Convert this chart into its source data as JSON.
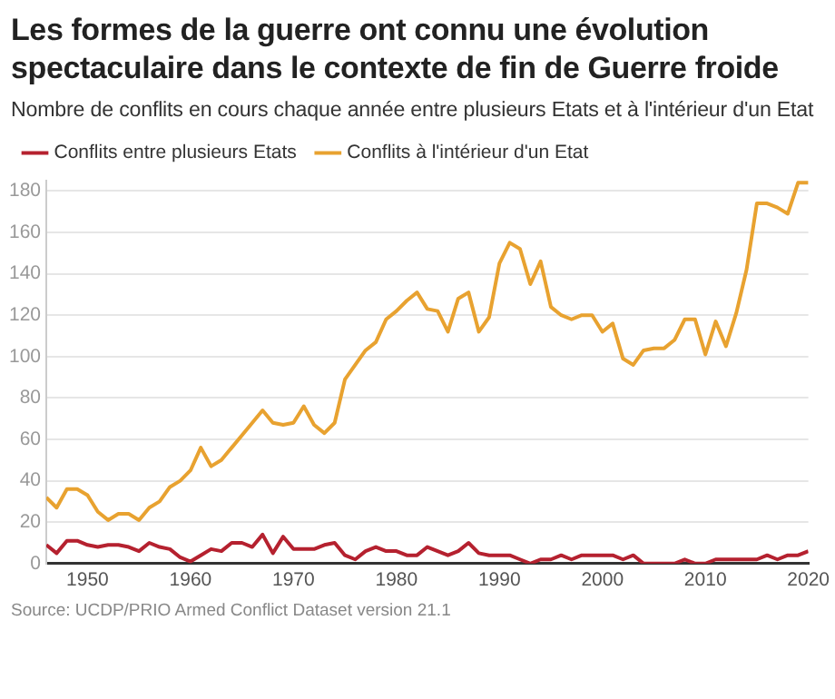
{
  "chart_data": {
    "type": "line",
    "title": "Les formes de la guerre ont connu une évolution spectaculaire dans le contexte de fin de Guerre froide",
    "subtitle": "Nombre de conflits en cours chaque année entre plusieurs Etats et à l'intérieur d'un Etat",
    "annotations": [
      "Source: UCDP/PRIO Armed Conflict Dataset version 21.1"
    ],
    "x": [
      1946,
      1947,
      1948,
      1949,
      1950,
      1951,
      1952,
      1953,
      1954,
      1955,
      1956,
      1957,
      1958,
      1959,
      1960,
      1961,
      1962,
      1963,
      1964,
      1965,
      1966,
      1967,
      1968,
      1969,
      1970,
      1971,
      1972,
      1973,
      1974,
      1975,
      1976,
      1977,
      1978,
      1979,
      1980,
      1981,
      1982,
      1983,
      1984,
      1985,
      1986,
      1987,
      1988,
      1989,
      1990,
      1991,
      1992,
      1993,
      1994,
      1995,
      1996,
      1997,
      1998,
      1999,
      2000,
      2001,
      2002,
      2003,
      2004,
      2005,
      2006,
      2007,
      2008,
      2009,
      2010,
      2011,
      2012,
      2013,
      2014,
      2015,
      2016,
      2017,
      2018,
      2019,
      2020
    ],
    "series": [
      {
        "name": "Conflits entre plusieurs Etats",
        "color": "#b5212f",
        "values": [
          9,
          5,
          11,
          11,
          9,
          8,
          9,
          9,
          8,
          6,
          10,
          8,
          7,
          3,
          1,
          4,
          7,
          6,
          10,
          10,
          8,
          14,
          5,
          13,
          7,
          7,
          7,
          9,
          10,
          4,
          2,
          6,
          8,
          6,
          6,
          4,
          4,
          8,
          6,
          4,
          6,
          10,
          5,
          4,
          4,
          4,
          2,
          0,
          2,
          2,
          4,
          2,
          4,
          4,
          4,
          4,
          2,
          4,
          0,
          0,
          0,
          0,
          2,
          0,
          0,
          2,
          2,
          2,
          2,
          2,
          4,
          2,
          4,
          4,
          6
        ]
      },
      {
        "name": "Conflits à l'intérieur d'un Etat",
        "color": "#e8a230",
        "values": [
          32,
          27,
          36,
          36,
          33,
          25,
          21,
          24,
          24,
          21,
          27,
          30,
          37,
          40,
          45,
          56,
          47,
          50,
          56,
          62,
          68,
          74,
          68,
          67,
          68,
          76,
          67,
          63,
          68,
          89,
          96,
          103,
          107,
          118,
          122,
          127,
          131,
          123,
          122,
          112,
          128,
          131,
          112,
          119,
          145,
          155,
          152,
          135,
          146,
          124,
          120,
          118,
          120,
          120,
          112,
          116,
          99,
          96,
          103,
          104,
          104,
          108,
          118,
          118,
          101,
          117,
          105,
          121,
          142,
          174,
          174,
          172,
          169,
          184,
          184
        ]
      }
    ],
    "xlim": [
      1946,
      2020
    ],
    "xticks": [
      1950,
      1960,
      1970,
      1980,
      1990,
      2000,
      2010,
      2020
    ],
    "ylim": [
      0,
      185
    ],
    "yticks": [
      0,
      20,
      40,
      60,
      80,
      100,
      120,
      140,
      160,
      180
    ],
    "grid": "y",
    "legend": "top left",
    "marker": "none",
    "line_style": "solid"
  }
}
